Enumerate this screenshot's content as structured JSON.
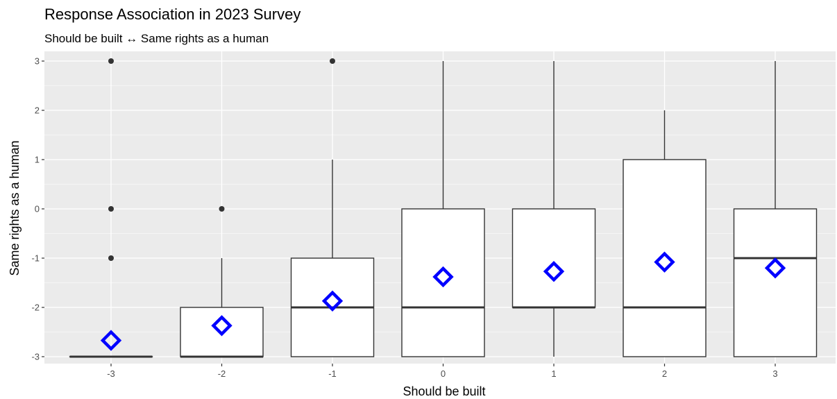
{
  "chart_data": {
    "type": "boxplot",
    "title": "Response Association in 2023 Survey",
    "subtitle": "Should be built ↔ Same rights as a human",
    "xlabel": "Should be built",
    "ylabel": "Same rights as a human",
    "categories": [
      "-3",
      "-2",
      "-1",
      "0",
      "1",
      "2",
      "3"
    ],
    "x_ticks": [
      "-3",
      "-2",
      "-1",
      "0",
      "1",
      "2",
      "3"
    ],
    "y_ticks": [
      "-3",
      "-2",
      "-1",
      "0",
      "1",
      "2",
      "3"
    ],
    "ylim": [
      -3,
      3
    ],
    "grid": true,
    "panel_background": "#ebebeb",
    "mean_marker_color": "#0000ff",
    "boxes": [
      {
        "x": -3,
        "lower_whisker": -3,
        "q1": -3,
        "median": -3,
        "q3": -3,
        "upper_whisker": -3,
        "mean": -2.67,
        "outliers": [
          3,
          0,
          -1
        ]
      },
      {
        "x": -2,
        "lower_whisker": -3,
        "q1": -3,
        "median": -3,
        "q3": -2,
        "upper_whisker": -1,
        "mean": -2.37,
        "outliers": [
          0
        ]
      },
      {
        "x": -1,
        "lower_whisker": -3,
        "q1": -3,
        "median": -2,
        "q3": -1,
        "upper_whisker": 1,
        "mean": -1.87,
        "outliers": [
          3
        ]
      },
      {
        "x": 0,
        "lower_whisker": -3,
        "q1": -3,
        "median": -2,
        "q3": 0,
        "upper_whisker": 3,
        "mean": -1.38,
        "outliers": []
      },
      {
        "x": 1,
        "lower_whisker": -3,
        "q1": -2,
        "median": -2,
        "q3": 0,
        "upper_whisker": 3,
        "mean": -1.27,
        "outliers": []
      },
      {
        "x": 2,
        "lower_whisker": -3,
        "q1": -3,
        "median": -2,
        "q3": 1,
        "upper_whisker": 2,
        "mean": -1.08,
        "outliers": []
      },
      {
        "x": 3,
        "lower_whisker": -3,
        "q1": -3,
        "median": -1,
        "q3": 0,
        "upper_whisker": 3,
        "mean": -1.2,
        "outliers": []
      }
    ]
  }
}
